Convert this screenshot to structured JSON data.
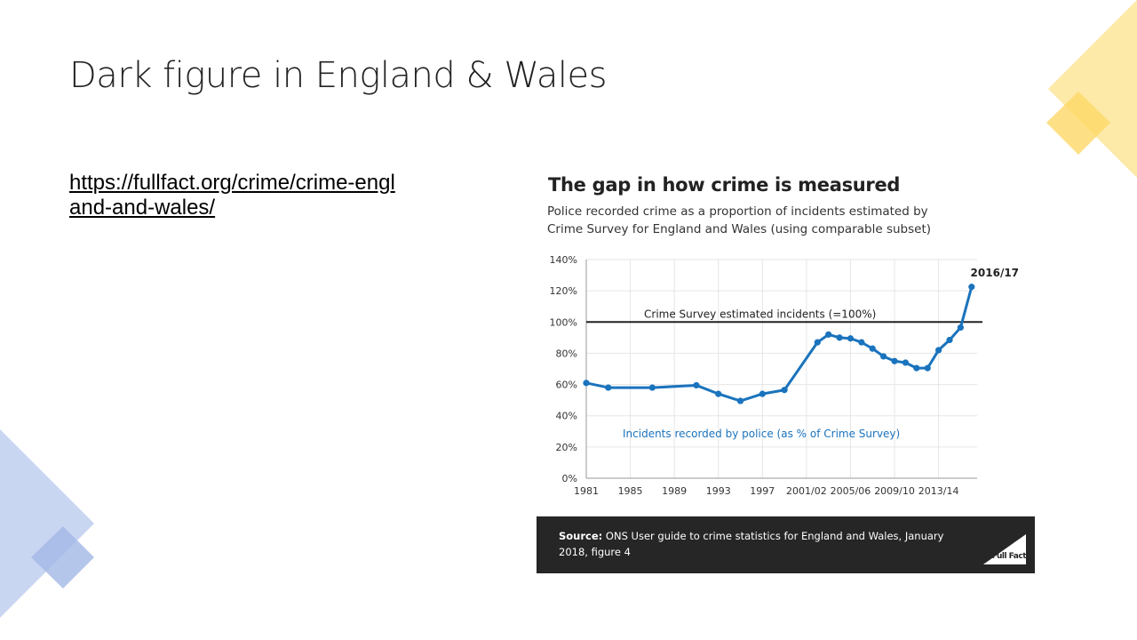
{
  "slide": {
    "title": "Dark figure in England & Wales",
    "link": "https://fullfact.org/crime/crime-england-and-wales/"
  },
  "figure": {
    "title": "The gap in how crime is measured",
    "subtitle": "Police recorded crime as a proportion of incidents estimated by Crime Survey for England and Wales (using comparable subset)",
    "source_label": "Source:",
    "source_text": " ONS User guide to crime statistics for England and Wales, January 2018, figure 4",
    "logo_text": "Full Fact"
  },
  "colors": {
    "series": "#1a73bd",
    "reference": "#222222",
    "grid": "#e6e6e6",
    "source_bg": "#262626",
    "deco_yellow": "#fde9a8",
    "deco_yellow_dark": "#fcd867",
    "deco_blue": "#c9d6f2",
    "deco_blue_dark": "#a3b8e6"
  },
  "chart_data": {
    "type": "line",
    "x_ticks": [
      "1981",
      "1985",
      "1989",
      "1993",
      "1997",
      "2001/02",
      "2005/06",
      "2009/10",
      "2013/14"
    ],
    "y_ticks": [
      "0%",
      "20%",
      "40%",
      "60%",
      "80%",
      "100%",
      "120%",
      "140%"
    ],
    "ylim": [
      0,
      140
    ],
    "grid": true,
    "series": [
      {
        "name": "Incidents recorded by police (as % of Crime Survey)",
        "x": [
          1981,
          1983,
          1987,
          1991,
          1993,
          1995,
          1997,
          1999,
          2002,
          2003,
          2004,
          2005,
          2006,
          2007,
          2008,
          2009,
          2010,
          2011,
          2012,
          2013,
          2014,
          2015,
          2016
        ],
        "values": [
          61,
          58,
          58,
          59.5,
          54,
          49.5,
          54,
          56.5,
          87,
          92,
          90,
          89.5,
          87,
          83,
          78,
          75,
          74,
          70.5,
          70.5,
          82,
          88.5,
          96.5,
          122.5
        ]
      }
    ],
    "reference_line": {
      "value": 100,
      "label": "Crime Survey estimated incidents (=100%)"
    },
    "annotation": {
      "x": 2016,
      "label": "2016/17"
    }
  }
}
